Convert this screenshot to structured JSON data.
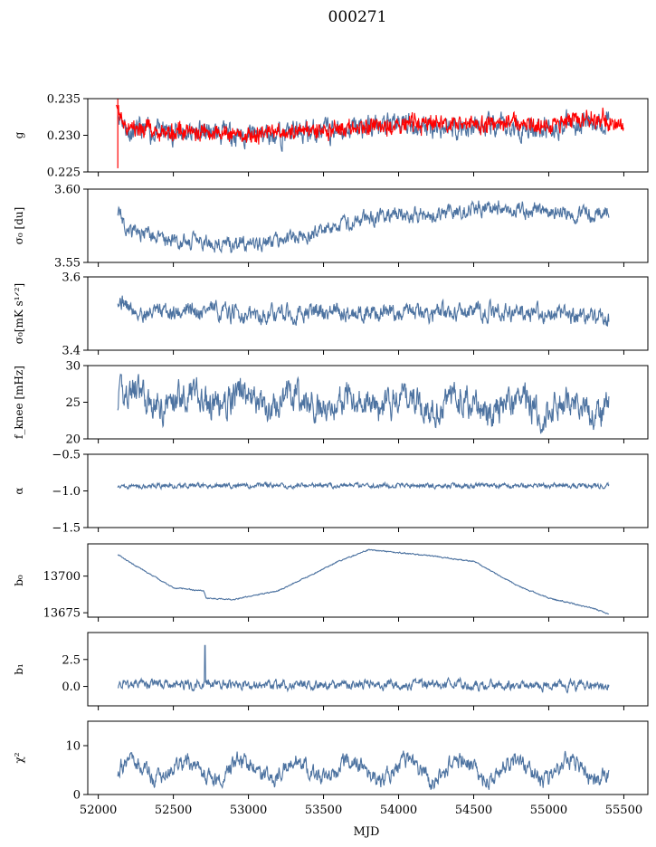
{
  "page_title": "000271",
  "shared_x": {
    "label": "MJD",
    "range": [
      51930,
      55660
    ],
    "ticks": [
      "52000",
      "52500",
      "53000",
      "53500",
      "54000",
      "54500",
      "55000",
      "55500"
    ]
  },
  "colors": {
    "series": "#4c72a0",
    "overlay": "#ff0000",
    "axes": "#000000"
  },
  "chart_data": [
    {
      "type": "line",
      "ylabel": "g",
      "ylim": [
        0.225,
        0.235
      ],
      "ticks": [
        0.225,
        0.23,
        0.235
      ],
      "tick_labels": [
        "0.225",
        "0.230",
        "0.235"
      ],
      "series": [
        {
          "name": "g",
          "color": "#4c72a0",
          "base": 0.2305,
          "noise": 0.0012,
          "seed": 11,
          "knots": [
            [
              52130,
              0.2335
            ],
            [
              52200,
              0.2305
            ],
            [
              52500,
              0.2305
            ],
            [
              53000,
              0.23
            ],
            [
              53500,
              0.2305
            ],
            [
              54000,
              0.2315
            ],
            [
              54500,
              0.231
            ],
            [
              55000,
              0.2312
            ],
            [
              55400,
              0.2322
            ]
          ]
        },
        {
          "name": "g_model",
          "color": "#ff0000",
          "band": true,
          "noise": 0.0006,
          "seed": 5,
          "knots": [
            [
              52120,
              0.2345
            ],
            [
              52180,
              0.231
            ],
            [
              52500,
              0.2305
            ],
            [
              53000,
              0.2302
            ],
            [
              53500,
              0.2307
            ],
            [
              54000,
              0.2315
            ],
            [
              54500,
              0.2315
            ],
            [
              55000,
              0.2315
            ],
            [
              55300,
              0.2325
            ],
            [
              55500,
              0.2308
            ]
          ]
        }
      ]
    },
    {
      "type": "line",
      "ylabel": "σ0 [du]",
      "ylim": [
        3.55,
        3.6
      ],
      "ticks": [
        3.55,
        3.6
      ],
      "tick_labels": [
        "3.55",
        "3.60"
      ],
      "series": [
        {
          "name": "sigma0_du",
          "color": "#4c72a0",
          "noise": 0.004,
          "seed": 21,
          "knots": [
            [
              52130,
              3.586
            ],
            [
              52200,
              3.572
            ],
            [
              52500,
              3.565
            ],
            [
              52900,
              3.562
            ],
            [
              53200,
              3.565
            ],
            [
              53500,
              3.572
            ],
            [
              53800,
              3.58
            ],
            [
              54200,
              3.583
            ],
            [
              54700,
              3.589
            ],
            [
              55000,
              3.584
            ],
            [
              55200,
              3.583
            ],
            [
              55400,
              3.585
            ]
          ]
        }
      ]
    },
    {
      "type": "line",
      "ylabel": "σ0[mK s^1/2]",
      "ylim": [
        3.4,
        3.6
      ],
      "ticks": [
        3.4,
        3.6
      ],
      "tick_labels": [
        "3.4",
        "3.6"
      ],
      "series": [
        {
          "name": "sigma0_mK",
          "color": "#4c72a0",
          "noise": 0.018,
          "seed": 31,
          "knots": [
            [
              52130,
              3.545
            ],
            [
              52250,
              3.5
            ],
            [
              52700,
              3.51
            ],
            [
              53000,
              3.495
            ],
            [
              53500,
              3.505
            ],
            [
              54000,
              3.5
            ],
            [
              54500,
              3.505
            ],
            [
              55000,
              3.5
            ],
            [
              55400,
              3.485
            ]
          ]
        }
      ]
    },
    {
      "type": "line",
      "ylabel": "f_knee [mHz]",
      "ylim": [
        20,
        30
      ],
      "ticks": [
        20,
        25,
        30
      ],
      "tick_labels": [
        "20",
        "25",
        "30"
      ],
      "series": [
        {
          "name": "f_knee",
          "color": "#4c72a0",
          "noise": 1.6,
          "seed": 41,
          "period": 365,
          "amp": 1.0,
          "knots": [
            [
              52130,
              25.5
            ],
            [
              55400,
              24.5
            ]
          ]
        }
      ]
    },
    {
      "type": "line",
      "ylabel": "α",
      "ylim": [
        -1.5,
        -0.5
      ],
      "ticks": [
        -1.5,
        -1.0,
        -0.5
      ],
      "tick_labels": [
        "−1.5",
        "−1.0",
        "−0.5"
      ],
      "series": [
        {
          "name": "alpha",
          "color": "#4c72a0",
          "noise": 0.025,
          "seed": 51,
          "knots": [
            [
              52130,
              -0.93
            ],
            [
              55400,
              -0.93
            ]
          ]
        }
      ]
    },
    {
      "type": "line",
      "ylabel": "b0",
      "ylim": [
        13672,
        13722
      ],
      "ticks": [
        13675,
        13700
      ],
      "tick_labels": [
        "13675",
        "13700"
      ],
      "series": [
        {
          "name": "b0",
          "color": "#4c72a0",
          "noise": 0.3,
          "seed": 61,
          "knots": [
            [
              52130,
              13715
            ],
            [
              52200,
              13710
            ],
            [
              52500,
              13692
            ],
            [
              52700,
              13690
            ],
            [
              52720,
              13685
            ],
            [
              52900,
              13684
            ],
            [
              53200,
              13690
            ],
            [
              53500,
              13705
            ],
            [
              53600,
              13710
            ],
            [
              53800,
              13718
            ],
            [
              54200,
              13714
            ],
            [
              54500,
              13710
            ],
            [
              54800,
              13693
            ],
            [
              55000,
              13685
            ],
            [
              55300,
              13678
            ],
            [
              55400,
              13674
            ]
          ]
        }
      ]
    },
    {
      "type": "line",
      "ylabel": "b1",
      "ylim": [
        -1.8,
        5.0
      ],
      "ticks": [
        0.0,
        2.5
      ],
      "tick_labels": [
        "0.0",
        "2.5"
      ],
      "series": [
        {
          "name": "b1",
          "color": "#4c72a0",
          "noise": 0.35,
          "seed": 71,
          "spike": [
            52710,
            3.8
          ],
          "knots": [
            [
              52130,
              0.2
            ],
            [
              55400,
              0.1
            ]
          ]
        }
      ]
    },
    {
      "type": "line",
      "ylabel": "χ2",
      "ylim": [
        0,
        15
      ],
      "ticks": [
        0,
        10
      ],
      "tick_labels": [
        "0",
        "10"
      ],
      "series": [
        {
          "name": "chi2",
          "color": "#4c72a0",
          "noise": 1.3,
          "seed": 81,
          "period": 365,
          "amp": 2.0,
          "knots": [
            [
              52130,
              5.0
            ],
            [
              55400,
              5.0
            ]
          ]
        }
      ]
    }
  ]
}
